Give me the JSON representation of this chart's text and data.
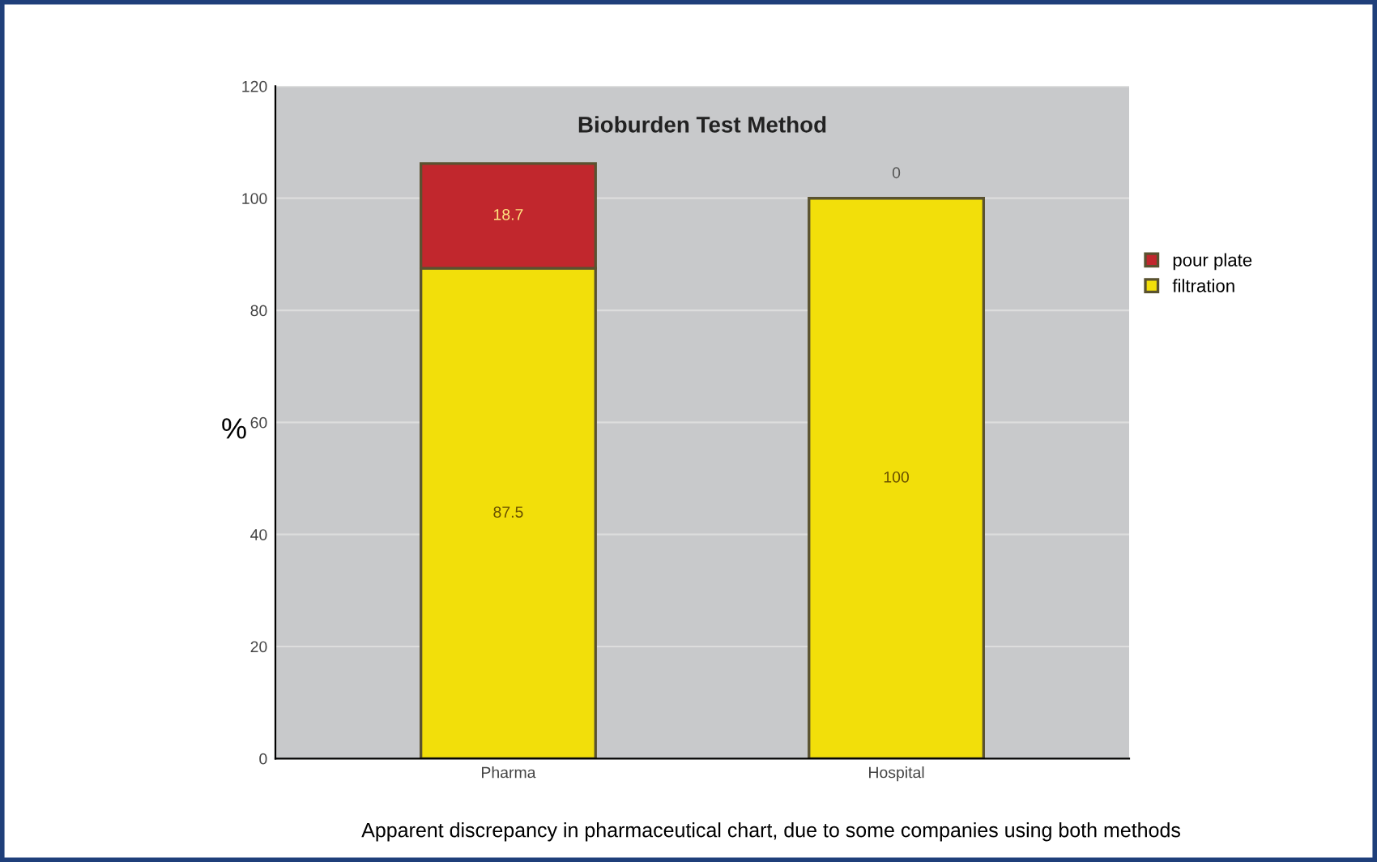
{
  "chart_data": {
    "type": "bar",
    "title": "Bioburden Test Method",
    "ylabel": "%",
    "categories": [
      "Pharma",
      "Hospital"
    ],
    "series": [
      {
        "name": "filtration",
        "color": "#f2df0a",
        "values": [
          87.5,
          100
        ]
      },
      {
        "name": "pour plate",
        "color": "#c1272d",
        "values": [
          18.7,
          0
        ]
      }
    ],
    "stacked": true,
    "ylim": [
      0,
      120
    ],
    "yticks": [
      0,
      20,
      40,
      60,
      80,
      100,
      120
    ],
    "grid": "y",
    "legend": "right",
    "data_labels": true,
    "annotations": [
      "Apparent discrepancy in pharmaceutical chart, due to some companies using both methods"
    ]
  }
}
